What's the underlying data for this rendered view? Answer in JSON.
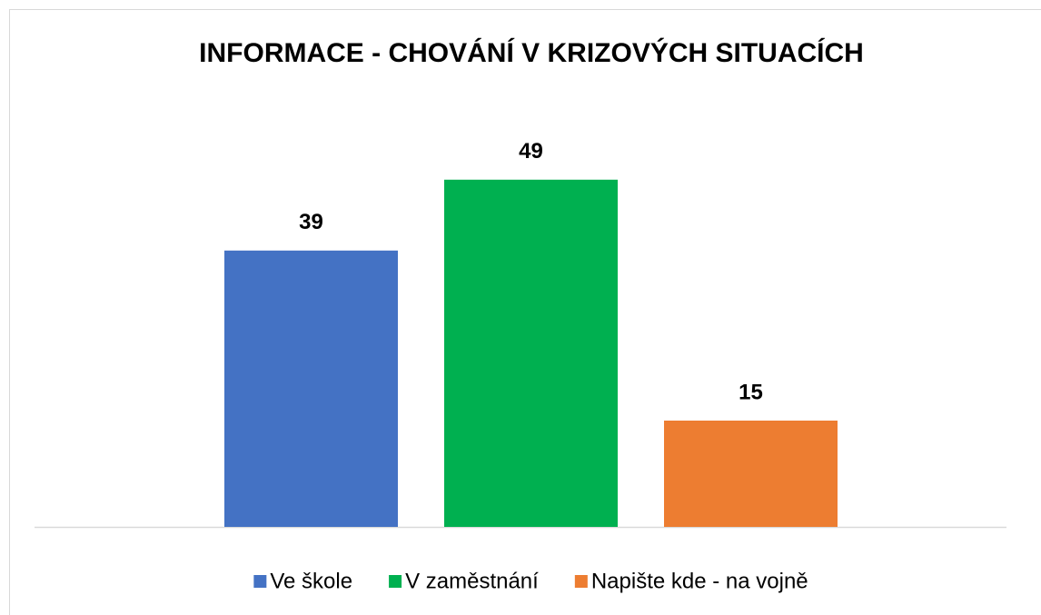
{
  "chart_data": {
    "type": "bar",
    "title": "INFORMACE - CHOVÁNÍ V KRIZOVÝCH SITUACÍCH",
    "categories": [
      null
    ],
    "series": [
      {
        "name": "Ve škole",
        "color": "#4472c4",
        "values": [
          39
        ]
      },
      {
        "name": "V zaměstnání",
        "color": "#00b050",
        "values": [
          49
        ]
      },
      {
        "name": "Napište kde - na vojně",
        "color": "#ed7d31",
        "values": [
          15
        ]
      }
    ],
    "ylim": [
      0,
      60
    ],
    "legend": "bottom"
  }
}
